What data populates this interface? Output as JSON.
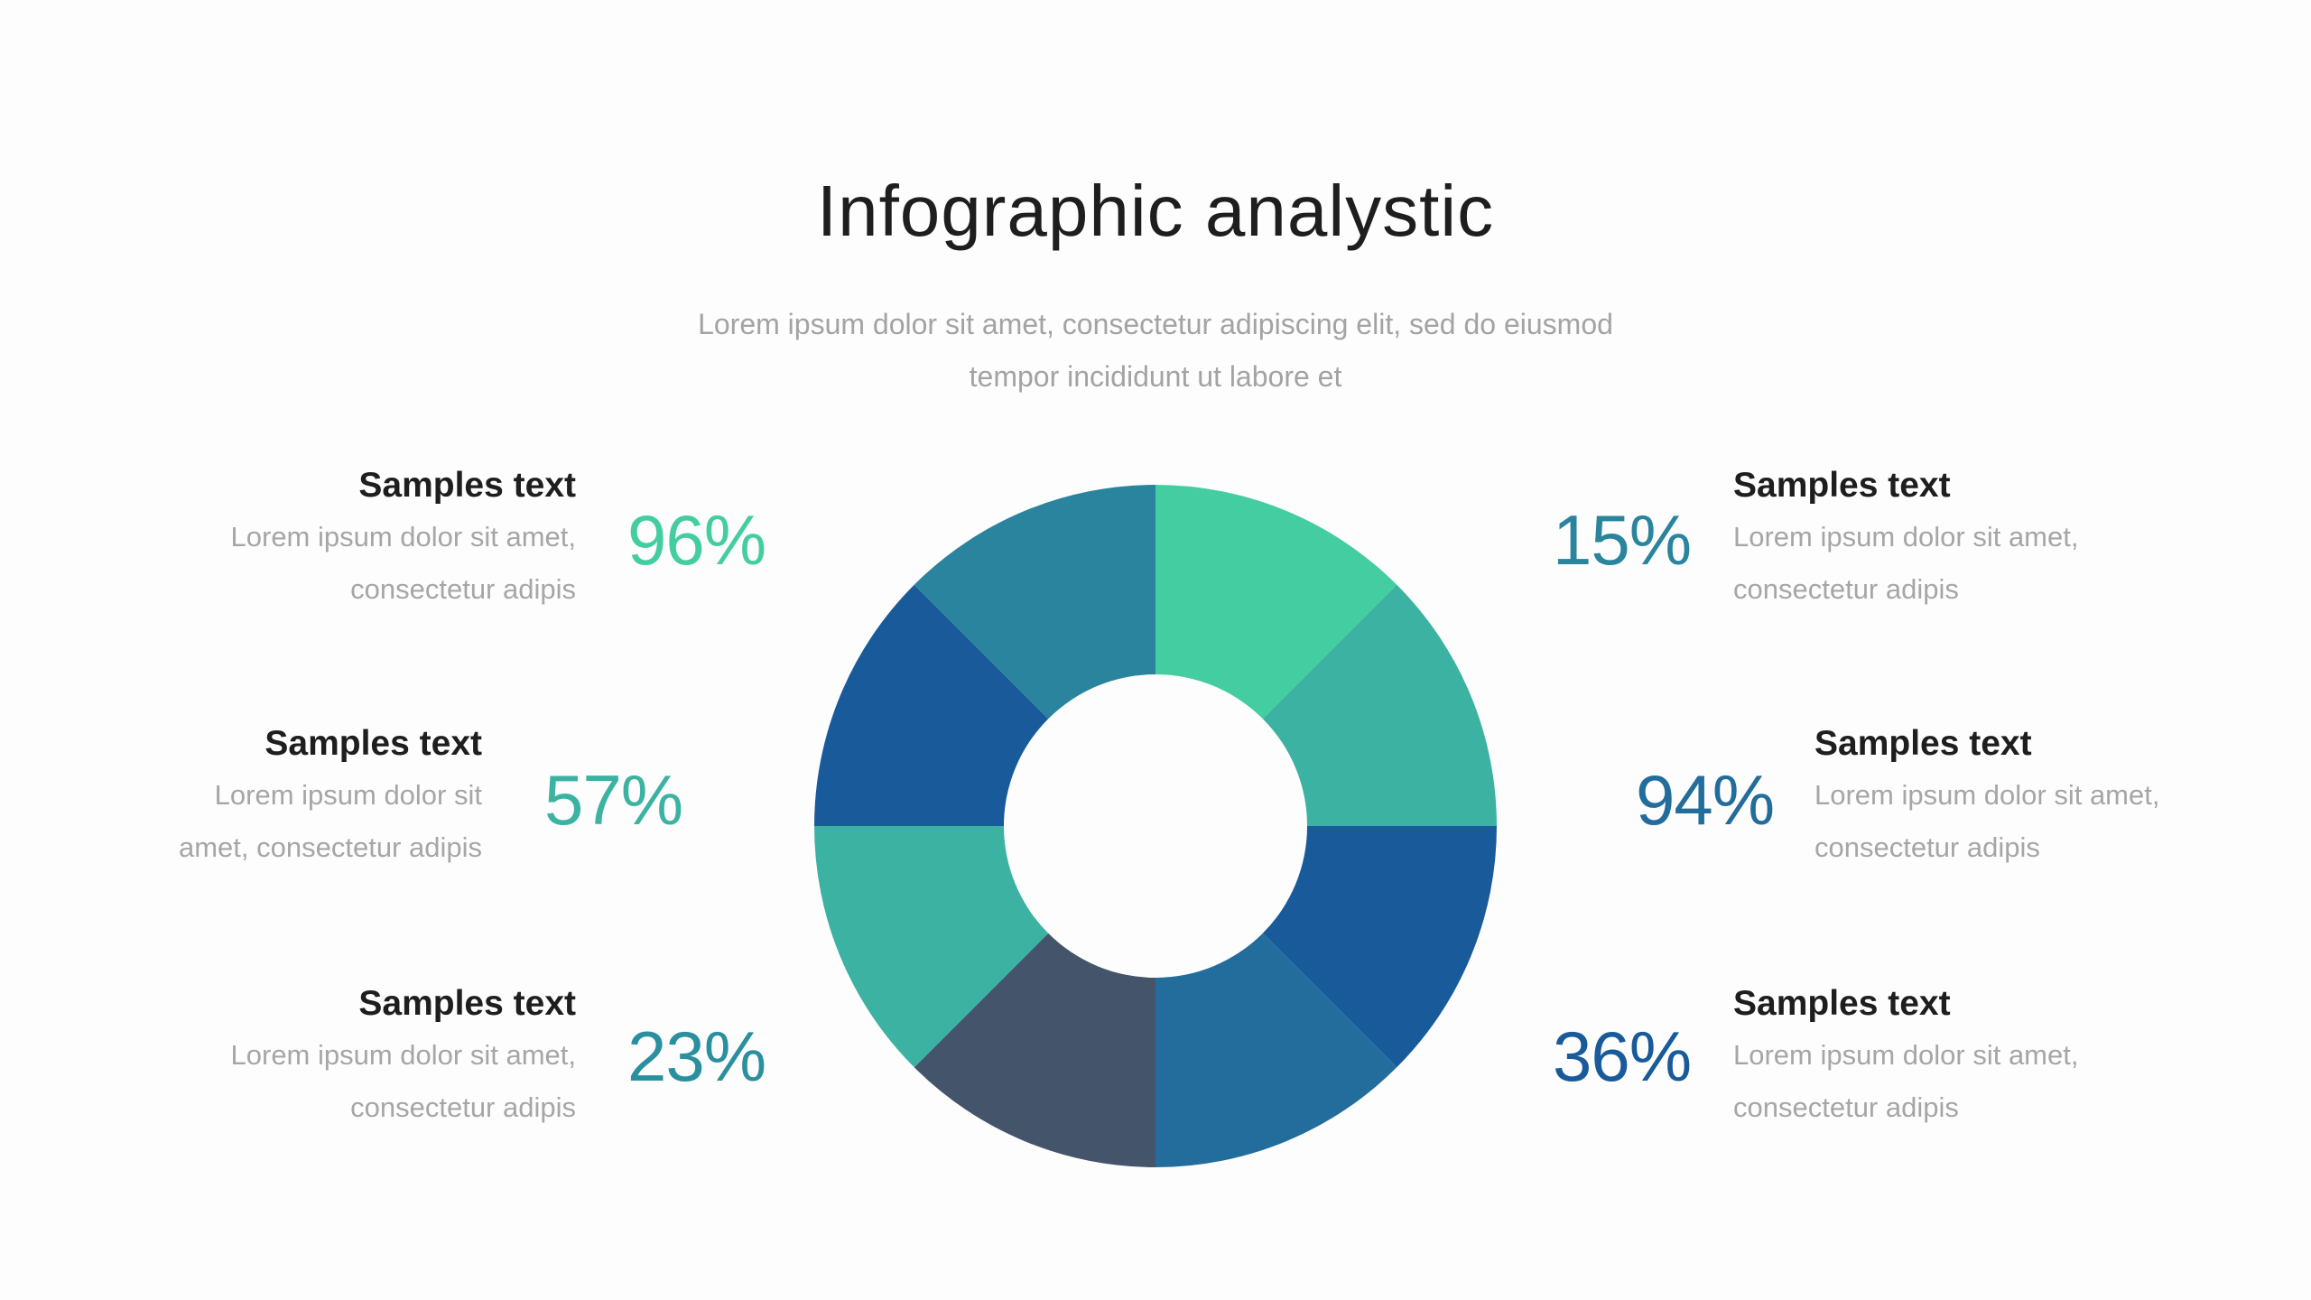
{
  "header": {
    "title": "Infographic analystic",
    "subtitle": "Lorem ipsum dolor sit amet, consectetur adipiscing elit, sed do eiusmod tempor incididunt ut labore et"
  },
  "items": [
    {
      "head": "Samples text",
      "desc": "Lorem ipsum dolor sit amet, consectetur adipis",
      "value": "96%",
      "color": "#45CDA2"
    },
    {
      "head": "Samples text",
      "desc": "Lorem ipsum dolor sit amet, consectetur adipis",
      "value": "57%",
      "color": "#3CB3A2"
    },
    {
      "head": "Samples text",
      "desc": "Lorem ipsum dolor sit amet, consectetur adipis",
      "value": "23%",
      "color": "#2A8F9E"
    },
    {
      "head": "Samples text",
      "desc": "Lorem ipsum dolor sit amet, consectetur adipis",
      "value": "15%",
      "color": "#2A849E"
    },
    {
      "head": "Samples text",
      "desc": "Lorem ipsum dolor sit amet, consectetur adipis",
      "value": "94%",
      "color": "#226D9C"
    },
    {
      "head": "Samples text",
      "desc": "Lorem ipsum dolor sit amet, consectetur adipis",
      "value": "36%",
      "color": "#195A9A"
    }
  ],
  "chart_data": {
    "type": "pie",
    "title": "",
    "donut": true,
    "slices": [
      {
        "value": 1,
        "color": "#45CDA2"
      },
      {
        "value": 1,
        "color": "#3CB3A2"
      },
      {
        "value": 1,
        "color": "#195A9A"
      },
      {
        "value": 1,
        "color": "#226D9C"
      },
      {
        "value": 1,
        "color": "#44546A"
      },
      {
        "value": 1,
        "color": "#3CB3A2"
      },
      {
        "value": 1,
        "color": "#195A9A"
      },
      {
        "value": 1,
        "color": "#2A849E"
      }
    ]
  }
}
